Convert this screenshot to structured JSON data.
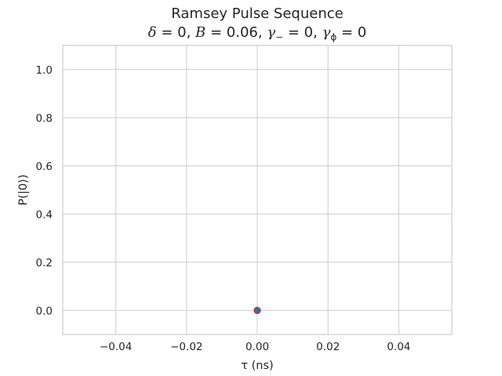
{
  "chart_data": {
    "type": "scatter",
    "title": "Ramsey Pulse Sequence",
    "subtitle": {
      "delta_sym": "δ",
      "delta_val": " = 0, ",
      "b_sym": "B",
      "b_val": " = 0.06, ",
      "gm_sym": "γ",
      "gm_sub": "−",
      "gm_val": " = 0, ",
      "gp_sym": "γ",
      "gp_sub": "ϕ",
      "gp_val": " = 0"
    },
    "xlabel": "τ (ns)",
    "ylabel": "P(|0⟩)",
    "xlim": [
      -0.055,
      0.055
    ],
    "ylim": [
      -0.1,
      1.1
    ],
    "xticks": [
      -0.04,
      -0.02,
      0.0,
      0.02,
      0.04
    ],
    "xtick_labels": [
      "−0.04",
      "−0.02",
      "0.00",
      "0.02",
      "0.04"
    ],
    "yticks": [
      0.0,
      0.2,
      0.4,
      0.6,
      0.8,
      1.0
    ],
    "ytick_labels": [
      "0.0",
      "0.2",
      "0.4",
      "0.6",
      "0.8",
      "1.0"
    ],
    "grid": true,
    "series": [
      {
        "x": [
          0.0
        ],
        "y": [
          0.0
        ],
        "color": "#1f77b4",
        "edgecolor": "#d62728"
      }
    ],
    "colors": {
      "grid": "#cccccc",
      "frame": "#cccccc",
      "text": "#262626"
    }
  }
}
